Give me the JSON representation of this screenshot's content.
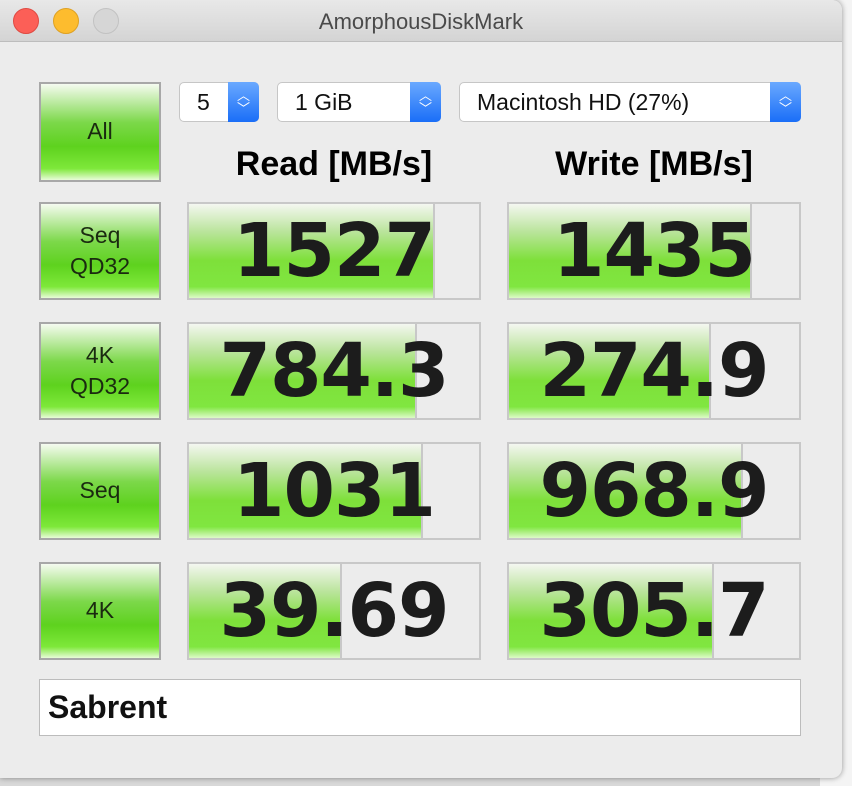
{
  "window": {
    "title": "AmorphousDiskMark"
  },
  "controls": {
    "all_label": "All",
    "count": "5",
    "size": "1 GiB",
    "drive": "Macintosh HD (27%)"
  },
  "headers": {
    "read": "Read [MB/s]",
    "write": "Write [MB/s]"
  },
  "colors": {
    "bar_green": "#7ee03a",
    "select_accent": "#1a6ef7"
  },
  "rows": [
    {
      "label": "Seq\nQD32",
      "read": "1527",
      "write": "1435",
      "read_fill": 0.84,
      "write_fill": 0.83
    },
    {
      "label": "4K\nQD32",
      "read": "784.3",
      "write": "274.9",
      "read_fill": 0.78,
      "write_fill": 0.69
    },
    {
      "label": "Seq",
      "read": "1031",
      "write": "968.9",
      "read_fill": 0.8,
      "write_fill": 0.8
    },
    {
      "label": "4K",
      "read": "39.69",
      "write": "305.7",
      "read_fill": 0.52,
      "write_fill": 0.7
    }
  ],
  "comment": "Sabrent"
}
